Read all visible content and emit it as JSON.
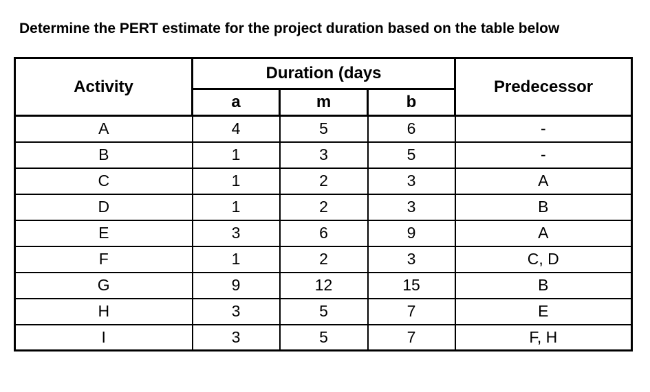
{
  "page": {
    "title": "Determine the PERT estimate for the project duration based on the table below"
  },
  "colors": {
    "text": "#000000",
    "border": "#000000",
    "background": "#ffffff"
  },
  "table": {
    "headers": {
      "activity": "Activity",
      "duration_group": "Duration (days",
      "a": "a",
      "m": "m",
      "b": "b",
      "predecessor": "Predecessor"
    },
    "rows": [
      {
        "activity": "A",
        "a": "4",
        "m": "5",
        "b": "6",
        "predecessor": "-"
      },
      {
        "activity": "B",
        "a": "1",
        "m": "3",
        "b": "5",
        "predecessor": "-"
      },
      {
        "activity": "C",
        "a": "1",
        "m": "2",
        "b": "3",
        "predecessor": "A"
      },
      {
        "activity": "D",
        "a": "1",
        "m": "2",
        "b": "3",
        "predecessor": "B"
      },
      {
        "activity": "E",
        "a": "3",
        "m": "6",
        "b": "9",
        "predecessor": "A"
      },
      {
        "activity": "F",
        "a": "1",
        "m": "2",
        "b": "3",
        "predecessor": "C, D"
      },
      {
        "activity": "G",
        "a": "9",
        "m": "12",
        "b": "15",
        "predecessor": "B"
      },
      {
        "activity": "H",
        "a": "3",
        "m": "5",
        "b": "7",
        "predecessor": "E"
      },
      {
        "activity": "I",
        "a": "3",
        "m": "5",
        "b": "7",
        "predecessor": "F, H"
      }
    ]
  }
}
